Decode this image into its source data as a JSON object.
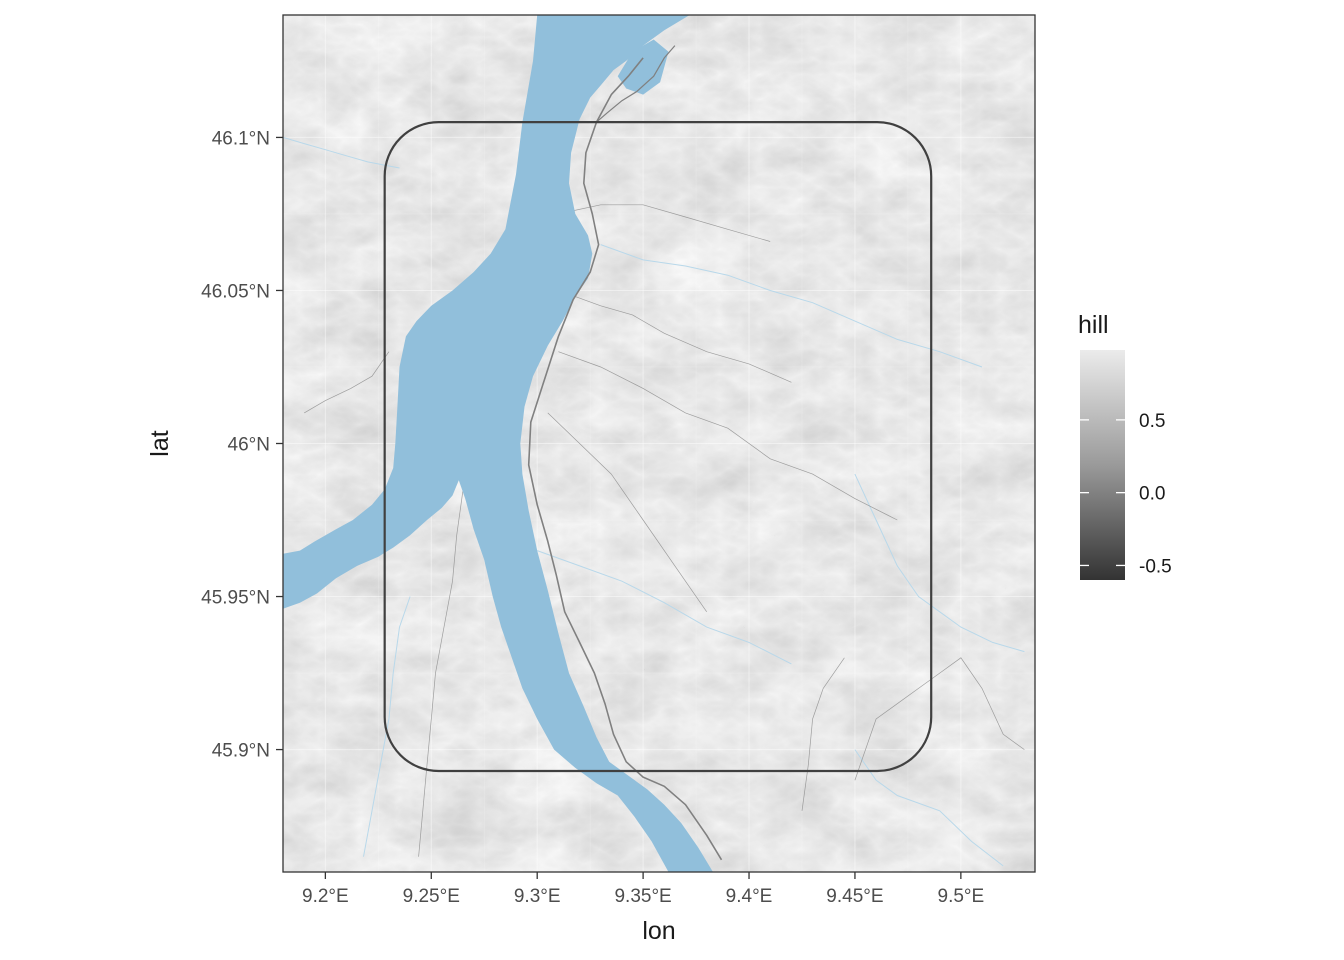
{
  "chart_data": {
    "type": "map",
    "xlabel": "lon",
    "ylabel": "lat",
    "xlim": [
      9.18,
      9.535
    ],
    "ylim": [
      45.86,
      46.14
    ],
    "x_ticks": [
      {
        "value": 9.2,
        "label": "9.2°E"
      },
      {
        "value": 9.25,
        "label": "9.25°E"
      },
      {
        "value": 9.3,
        "label": "9.3°E"
      },
      {
        "value": 9.35,
        "label": "9.35°E"
      },
      {
        "value": 9.4,
        "label": "9.4°E"
      },
      {
        "value": 9.45,
        "label": "9.45°E"
      },
      {
        "value": 9.5,
        "label": "9.5°E"
      }
    ],
    "y_ticks": [
      {
        "value": 45.9,
        "label": "45.9°N"
      },
      {
        "value": 45.95,
        "label": "45.95°N"
      },
      {
        "value": 46.0,
        "label": "46°N"
      },
      {
        "value": 46.05,
        "label": "46.05°N"
      },
      {
        "value": 46.1,
        "label": "46.1°N"
      }
    ],
    "grid": true,
    "legend": {
      "title": "hill",
      "placement": "right",
      "range": [
        -0.6,
        0.98
      ],
      "breaks": [
        {
          "value": 0.5,
          "label": "0.5"
        },
        {
          "value": 0.0,
          "label": "0.0"
        },
        {
          "value": -0.5,
          "label": "-0.5"
        }
      ],
      "color_low": "#333333",
      "color_high": "#ebebeb"
    },
    "bbox_rect": {
      "lon_min": 9.228,
      "lon_max": 9.486,
      "lat_min": 45.893,
      "lat_max": 46.105,
      "color": "#404040"
    },
    "water_color": "#91bfdb",
    "road_color": "#808080",
    "river_color": "#b8d8ea",
    "lake_west_bank": [
      [
        9.3,
        46.14
      ],
      [
        9.298,
        46.125
      ],
      [
        9.293,
        46.105
      ],
      [
        9.29,
        46.088
      ],
      [
        9.285,
        46.07
      ],
      [
        9.278,
        46.062
      ],
      [
        9.27,
        46.056
      ],
      [
        9.26,
        46.05
      ],
      [
        9.25,
        46.045
      ],
      [
        9.243,
        46.04
      ],
      [
        9.238,
        46.035
      ],
      [
        9.235,
        46.025
      ],
      [
        9.234,
        46.012
      ],
      [
        9.233,
        46.0
      ],
      [
        9.232,
        45.992
      ],
      [
        9.228,
        45.985
      ],
      [
        9.222,
        45.98
      ],
      [
        9.213,
        45.975
      ],
      [
        9.205,
        45.972
      ],
      [
        9.195,
        45.968
      ],
      [
        9.188,
        45.965
      ],
      [
        9.18,
        45.964
      ]
    ],
    "lake_southwest_shore": [
      [
        9.18,
        45.946
      ],
      [
        9.188,
        45.948
      ],
      [
        9.196,
        45.951
      ],
      [
        9.205,
        45.956
      ],
      [
        9.215,
        45.96
      ],
      [
        9.225,
        45.963
      ],
      [
        9.232,
        45.966
      ],
      [
        9.24,
        45.97
      ],
      [
        9.248,
        45.975
      ],
      [
        9.255,
        45.979
      ],
      [
        9.26,
        45.983
      ],
      [
        9.263,
        45.988
      ],
      [
        9.266,
        45.982
      ],
      [
        9.27,
        45.972
      ],
      [
        9.275,
        45.962
      ],
      [
        9.279,
        45.95
      ],
      [
        9.283,
        45.94
      ],
      [
        9.288,
        45.93
      ],
      [
        9.293,
        45.92
      ],
      [
        9.3,
        45.91
      ],
      [
        9.308,
        45.9
      ],
      [
        9.318,
        45.894
      ],
      [
        9.328,
        45.889
      ],
      [
        9.338,
        45.885
      ],
      [
        9.346,
        45.878
      ],
      [
        9.354,
        45.87
      ],
      [
        9.362,
        45.86
      ]
    ],
    "lake_east_shore": [
      [
        9.383,
        45.86
      ],
      [
        9.376,
        45.868
      ],
      [
        9.368,
        45.876
      ],
      [
        9.36,
        45.882
      ],
      [
        9.352,
        45.887
      ],
      [
        9.344,
        45.891
      ],
      [
        9.334,
        45.896
      ],
      [
        9.328,
        45.904
      ],
      [
        9.322,
        45.914
      ],
      [
        9.315,
        45.925
      ],
      [
        9.31,
        45.938
      ],
      [
        9.305,
        45.952
      ],
      [
        9.3,
        45.965
      ],
      [
        9.296,
        45.978
      ],
      [
        9.293,
        45.99
      ],
      [
        9.292,
        46.0
      ],
      [
        9.294,
        46.012
      ],
      [
        9.298,
        46.022
      ],
      [
        9.305,
        46.032
      ],
      [
        9.312,
        46.04
      ],
      [
        9.318,
        46.048
      ],
      [
        9.324,
        46.054
      ],
      [
        9.326,
        46.062
      ],
      [
        9.324,
        46.068
      ],
      [
        9.318,
        46.075
      ],
      [
        9.315,
        46.085
      ],
      [
        9.316,
        46.095
      ],
      [
        9.32,
        46.106
      ],
      [
        9.325,
        46.113
      ],
      [
        9.33,
        46.117
      ],
      [
        9.336,
        46.122
      ],
      [
        9.342,
        46.125
      ],
      [
        9.35,
        46.13
      ],
      [
        9.36,
        46.135
      ],
      [
        9.372,
        46.14
      ]
    ],
    "road": [
      [
        9.387,
        45.864
      ],
      [
        9.38,
        45.872
      ],
      [
        9.37,
        45.882
      ],
      [
        9.36,
        45.888
      ],
      [
        9.35,
        45.891
      ],
      [
        9.342,
        45.896
      ],
      [
        9.336,
        45.905
      ],
      [
        9.332,
        45.915
      ],
      [
        9.327,
        45.925
      ],
      [
        9.32,
        45.935
      ],
      [
        9.313,
        45.945
      ],
      [
        9.309,
        45.957
      ],
      [
        9.305,
        45.968
      ],
      [
        9.3,
        45.98
      ],
      [
        9.296,
        45.993
      ],
      [
        9.297,
        46.007
      ],
      [
        9.303,
        46.02
      ],
      [
        9.31,
        46.035
      ],
      [
        9.317,
        46.047
      ],
      [
        9.325,
        46.056
      ],
      [
        9.329,
        46.065
      ],
      [
        9.326,
        46.075
      ],
      [
        9.322,
        46.085
      ],
      [
        9.323,
        46.095
      ],
      [
        9.328,
        46.105
      ],
      [
        9.335,
        46.114
      ],
      [
        9.343,
        46.12
      ],
      [
        9.35,
        46.126
      ]
    ],
    "road_north_branch": [
      [
        9.328,
        46.105
      ],
      [
        9.333,
        46.108
      ],
      [
        9.34,
        46.112
      ],
      [
        9.347,
        46.115
      ],
      [
        9.355,
        46.12
      ],
      [
        9.36,
        46.126
      ],
      [
        9.365,
        46.13
      ]
    ],
    "minor_roads": [
      [
        [
          9.318,
          46.048
        ],
        [
          9.33,
          46.045
        ],
        [
          9.345,
          46.042
        ],
        [
          9.36,
          46.036
        ],
        [
          9.38,
          46.03
        ],
        [
          9.4,
          46.026
        ],
        [
          9.42,
          46.02
        ]
      ],
      [
        [
          9.31,
          46.03
        ],
        [
          9.33,
          46.025
        ],
        [
          9.35,
          46.018
        ],
        [
          9.37,
          46.01
        ],
        [
          9.39,
          46.005
        ],
        [
          9.41,
          45.995
        ],
        [
          9.43,
          45.99
        ],
        [
          9.45,
          45.982
        ],
        [
          9.47,
          45.975
        ]
      ],
      [
        [
          9.305,
          46.01
        ],
        [
          9.32,
          46.0
        ],
        [
          9.335,
          45.99
        ],
        [
          9.35,
          45.975
        ],
        [
          9.365,
          45.96
        ],
        [
          9.38,
          45.945
        ]
      ],
      [
        [
          9.265,
          45.985
        ],
        [
          9.262,
          45.97
        ],
        [
          9.26,
          45.955
        ],
        [
          9.256,
          45.94
        ],
        [
          9.252,
          45.925
        ],
        [
          9.25,
          45.91
        ],
        [
          9.248,
          45.895
        ],
        [
          9.246,
          45.88
        ],
        [
          9.244,
          45.865
        ]
      ],
      [
        [
          9.45,
          45.89
        ],
        [
          9.455,
          45.9
        ],
        [
          9.46,
          45.91
        ],
        [
          9.47,
          45.915
        ],
        [
          9.48,
          45.92
        ],
        [
          9.49,
          45.925
        ],
        [
          9.5,
          45.93
        ],
        [
          9.51,
          45.92
        ],
        [
          9.52,
          45.905
        ],
        [
          9.53,
          45.9
        ]
      ],
      [
        [
          9.425,
          45.88
        ],
        [
          9.428,
          45.895
        ],
        [
          9.43,
          45.91
        ],
        [
          9.435,
          45.92
        ],
        [
          9.445,
          45.93
        ]
      ],
      [
        [
          9.31,
          46.075
        ],
        [
          9.33,
          46.078
        ],
        [
          9.35,
          46.078
        ],
        [
          9.37,
          46.074
        ],
        [
          9.39,
          46.07
        ],
        [
          9.41,
          46.066
        ]
      ],
      [
        [
          9.23,
          46.03
        ],
        [
          9.222,
          46.022
        ],
        [
          9.212,
          46.018
        ],
        [
          9.2,
          46.014
        ],
        [
          9.19,
          46.01
        ]
      ]
    ],
    "rivers": [
      [
        [
          9.33,
          46.065
        ],
        [
          9.35,
          46.06
        ],
        [
          9.37,
          46.058
        ],
        [
          9.39,
          46.055
        ],
        [
          9.41,
          46.05
        ],
        [
          9.43,
          46.046
        ],
        [
          9.45,
          46.04
        ],
        [
          9.47,
          46.034
        ],
        [
          9.49,
          46.03
        ],
        [
          9.51,
          46.025
        ]
      ],
      [
        [
          9.3,
          45.965
        ],
        [
          9.32,
          45.96
        ],
        [
          9.34,
          45.955
        ],
        [
          9.36,
          45.948
        ],
        [
          9.38,
          45.94
        ],
        [
          9.4,
          45.935
        ],
        [
          9.42,
          45.928
        ]
      ],
      [
        [
          9.45,
          45.99
        ],
        [
          9.46,
          45.975
        ],
        [
          9.47,
          45.96
        ],
        [
          9.48,
          45.95
        ],
        [
          9.49,
          45.945
        ],
        [
          9.5,
          45.94
        ],
        [
          9.515,
          45.935
        ],
        [
          9.53,
          45.932
        ]
      ],
      [
        [
          9.45,
          45.9
        ],
        [
          9.46,
          45.89
        ],
        [
          9.47,
          45.885
        ],
        [
          9.49,
          45.88
        ],
        [
          9.505,
          45.87
        ],
        [
          9.52,
          45.862
        ]
      ],
      [
        [
          9.24,
          45.95
        ],
        [
          9.235,
          45.94
        ],
        [
          9.232,
          45.925
        ],
        [
          9.23,
          45.91
        ],
        [
          9.226,
          45.895
        ],
        [
          9.222,
          45.88
        ],
        [
          9.218,
          45.865
        ]
      ],
      [
        [
          9.18,
          46.1
        ],
        [
          9.19,
          46.098
        ],
        [
          9.2,
          46.096
        ],
        [
          9.21,
          46.094
        ],
        [
          9.22,
          46.092
        ],
        [
          9.235,
          46.09
        ]
      ]
    ]
  }
}
